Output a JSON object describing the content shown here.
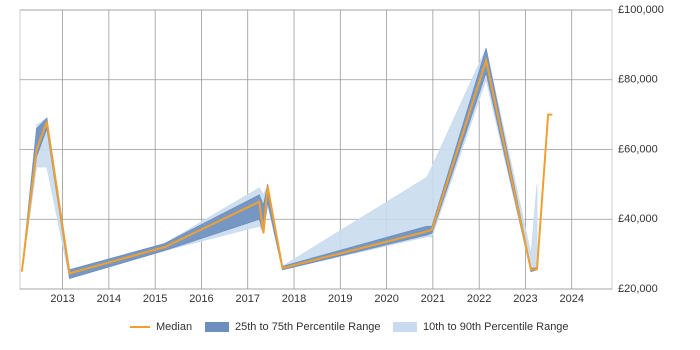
{
  "chart_data": {
    "type": "line",
    "x": [
      2012.12,
      2012.44,
      2012.66,
      2013.15,
      2015.2,
      2017.25,
      2017.34,
      2017.43,
      2017.75,
      2020.87,
      2020.98,
      2022.15,
      2023.12,
      2023.25,
      2023.49,
      2023.58
    ],
    "series": [
      {
        "name": "Median",
        "color": "#f0a030",
        "values": [
          25000,
          60000,
          68000,
          24500,
          32000,
          45000,
          36000,
          49500,
          26000,
          36500,
          37000,
          85500,
          25500,
          25700,
          70000,
          70000
        ]
      },
      {
        "name": "25th to 75th Percentile Range",
        "color": "#6d8fbf",
        "low": [
          25000,
          58000,
          66000,
          23000,
          31000,
          40000,
          36000,
          45000,
          25500,
          35500,
          36000,
          82000,
          25000,
          25500,
          null,
          null
        ],
        "high": [
          25000,
          66000,
          69000,
          25500,
          33000,
          47000,
          44000,
          50000,
          26500,
          38000,
          38000,
          89000,
          26000,
          26000,
          null,
          null
        ]
      },
      {
        "name": "10th to 90th Percentile Range",
        "color": "#c9dbee",
        "low": [
          25000,
          55000,
          55000,
          23000,
          31000,
          38000,
          36000,
          44000,
          25500,
          35000,
          35000,
          80000,
          25000,
          25500,
          null,
          null
        ],
        "high": [
          25000,
          67000,
          69000,
          25500,
          33000,
          49000,
          47000,
          50000,
          26500,
          52000,
          55000,
          89000,
          30000,
          50000,
          null,
          null
        ]
      }
    ],
    "xlim": [
      2012.08,
      2024.87
    ],
    "xticks": [
      2013,
      2014,
      2015,
      2016,
      2017,
      2018,
      2019,
      2020,
      2021,
      2022,
      2023,
      2024
    ],
    "ylim": [
      20000,
      100000
    ],
    "yticks": [
      {
        "value": 20000,
        "label": "£20,000"
      },
      {
        "value": 40000,
        "label": "£40,000"
      },
      {
        "value": 60000,
        "label": "£60,000"
      },
      {
        "value": 80000,
        "label": "£80,000"
      },
      {
        "value": 100000,
        "label": "£100,000"
      }
    ],
    "grid": true
  }
}
